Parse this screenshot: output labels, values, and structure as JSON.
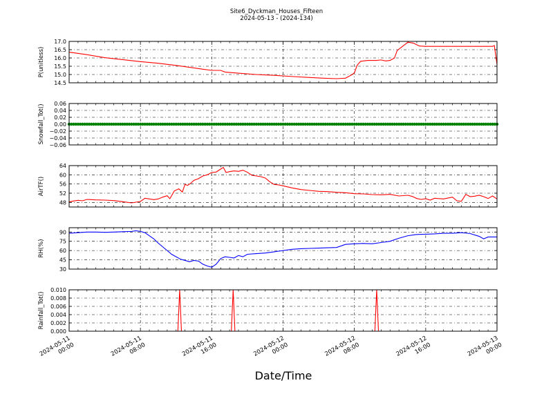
{
  "header": {
    "title": "Site6_Dyckman_Houses_Fifteen",
    "subtitle": "2024-05-13 - (2024-134)"
  },
  "xaxis_label": "Date/Time",
  "chart_data": [
    {
      "type": "line",
      "id": "p",
      "ylabel": "P(unitless)",
      "ylim": [
        14.5,
        17.0
      ],
      "yticks": [
        "14.5",
        "15.0",
        "15.5",
        "16.0",
        "16.5",
        "17.0"
      ],
      "xlim": [
        0,
        48
      ],
      "x_ticks": [
        "2024-05-11 00:00",
        "2024-05-11 08:00",
        "2024-05-11 16:00",
        "2024-05-12 00:00",
        "2024-05-12 08:00",
        "2024-05-12 16:00",
        "2024-05-13 00:00"
      ],
      "grid": true,
      "series": [
        {
          "color": "#ff0000",
          "points": [
            [
              0,
              16.35
            ],
            [
              2,
              16.2
            ],
            [
              4,
              16.02
            ],
            [
              6,
              15.9
            ],
            [
              8,
              15.78
            ],
            [
              10,
              15.68
            ],
            [
              12,
              15.55
            ],
            [
              14,
              15.4
            ],
            [
              15,
              15.32
            ],
            [
              16,
              15.25
            ],
            [
              17,
              15.25
            ],
            [
              17.5,
              15.15
            ],
            [
              19,
              15.08
            ],
            [
              21,
              15.0
            ],
            [
              23,
              14.95
            ],
            [
              25,
              14.88
            ],
            [
              27,
              14.82
            ],
            [
              28.5,
              14.78
            ],
            [
              30,
              14.75
            ],
            [
              31,
              14.78
            ],
            [
              31.6,
              14.95
            ],
            [
              32,
              15.1
            ],
            [
              32.3,
              15.55
            ],
            [
              32.7,
              15.8
            ],
            [
              33.5,
              15.85
            ],
            [
              34.5,
              15.85
            ],
            [
              35,
              15.88
            ],
            [
              35.5,
              15.82
            ],
            [
              36,
              15.85
            ],
            [
              36.5,
              16.0
            ],
            [
              36.8,
              16.45
            ],
            [
              37.4,
              16.7
            ],
            [
              38,
              16.95
            ],
            [
              38.6,
              16.9
            ],
            [
              39.3,
              16.72
            ],
            [
              40,
              16.7
            ],
            [
              42,
              16.7
            ],
            [
              44,
              16.7
            ],
            [
              46,
              16.7
            ],
            [
              47.5,
              16.7
            ],
            [
              47.7,
              16.75
            ],
            [
              48,
              15.6
            ]
          ]
        }
      ]
    },
    {
      "type": "scatter",
      "id": "snow",
      "ylabel": "Snowfall_Tot()",
      "ylim": [
        -0.06,
        0.06
      ],
      "yticks": [
        "−0.06",
        "−0.04",
        "−0.02",
        "0.00",
        "0.02",
        "0.04",
        "0.06"
      ],
      "xlim": [
        0,
        48
      ],
      "grid": true,
      "series": [
        {
          "color": "#008000",
          "constant_value": 0.0,
          "x_range": [
            0,
            48
          ],
          "interval": 0.25
        }
      ]
    },
    {
      "type": "line",
      "id": "airt",
      "ylabel": "AirTF()",
      "ylim": [
        46,
        64
      ],
      "yticks": [
        "48",
        "52",
        "56",
        "60",
        "64"
      ],
      "xlim": [
        0,
        48
      ],
      "grid": true,
      "series": [
        {
          "color": "#ff0000",
          "points": [
            [
              0,
              48.2
            ],
            [
              0.5,
              48.6
            ],
            [
              1,
              48.9
            ],
            [
              1.5,
              48.7
            ],
            [
              2,
              49.3
            ],
            [
              3,
              49.1
            ],
            [
              4,
              49
            ],
            [
              5,
              48.8
            ],
            [
              6,
              48.3
            ],
            [
              7,
              47.8
            ],
            [
              8,
              48.4
            ],
            [
              8.5,
              49.8
            ],
            [
              9,
              49.5
            ],
            [
              9.5,
              49.2
            ],
            [
              10,
              49.5
            ],
            [
              10.5,
              50.3
            ],
            [
              11,
              50.9
            ],
            [
              11.3,
              49.6
            ],
            [
              11.8,
              53
            ],
            [
              12.3,
              53.9
            ],
            [
              12.7,
              52.5
            ],
            [
              13,
              55.8
            ],
            [
              13.3,
              55.4
            ],
            [
              13.6,
              56.2
            ],
            [
              14,
              57.6
            ],
            [
              14.5,
              58.3
            ],
            [
              15,
              59.5
            ],
            [
              15.5,
              60
            ],
            [
              16,
              61
            ],
            [
              16.5,
              61.2
            ],
            [
              17,
              62.5
            ],
            [
              17.3,
              63.2
            ],
            [
              17.6,
              61
            ],
            [
              18,
              61.4
            ],
            [
              18.5,
              61.7
            ],
            [
              19,
              61.5
            ],
            [
              19.5,
              62
            ],
            [
              20,
              61.1
            ],
            [
              20.5,
              59.8
            ],
            [
              21,
              59.5
            ],
            [
              21.5,
              59.2
            ],
            [
              22,
              58.6
            ],
            [
              22.5,
              57
            ],
            [
              23,
              55.8
            ],
            [
              23.5,
              55.6
            ],
            [
              24,
              55.2
            ],
            [
              25,
              54.3
            ],
            [
              26,
              53.6
            ],
            [
              27,
              53.2
            ],
            [
              28,
              52.8
            ],
            [
              29,
              52.7
            ],
            [
              30,
              52.4
            ],
            [
              31,
              52.2
            ],
            [
              32,
              51.8
            ],
            [
              33,
              51.7
            ],
            [
              34,
              51.4
            ],
            [
              35,
              51.3
            ],
            [
              36,
              51.5
            ],
            [
              37,
              50.8
            ],
            [
              38,
              51.1
            ],
            [
              38.5,
              50.6
            ],
            [
              39,
              49.7
            ],
            [
              39.5,
              49.3
            ],
            [
              40,
              49.6
            ],
            [
              40.5,
              49
            ],
            [
              41,
              49.8
            ],
            [
              42,
              49.5
            ],
            [
              43,
              50.3
            ],
            [
              43.5,
              48.7
            ],
            [
              44,
              48.5
            ],
            [
              44.5,
              51.5
            ],
            [
              45,
              50.5
            ],
            [
              45.5,
              50.7
            ],
            [
              46,
              51.1
            ],
            [
              46.5,
              50.5
            ],
            [
              47,
              49.7
            ],
            [
              47.5,
              50.8
            ],
            [
              48,
              49.5
            ]
          ]
        }
      ]
    },
    {
      "type": "line",
      "id": "rh",
      "ylabel": "RH(%)",
      "ylim": [
        30,
        97
      ],
      "yticks": [
        "30",
        "45",
        "60",
        "75",
        "90"
      ],
      "xlim": [
        0,
        48
      ],
      "grid": true,
      "series": [
        {
          "color": "#0000ff",
          "points": [
            [
              0,
              88
            ],
            [
              1,
              89
            ],
            [
              2,
              90
            ],
            [
              3,
              90
            ],
            [
              4,
              89.5
            ],
            [
              5,
              90
            ],
            [
              6,
              90.5
            ],
            [
              7,
              91
            ],
            [
              7.5,
              92
            ],
            [
              8,
              91
            ],
            [
              8.5,
              89
            ],
            [
              9,
              84
            ],
            [
              9.5,
              79
            ],
            [
              10,
              72
            ],
            [
              10.5,
              66
            ],
            [
              11,
              60
            ],
            [
              11.5,
              54
            ],
            [
              12,
              50
            ],
            [
              12.5,
              46
            ],
            [
              13,
              44
            ],
            [
              13.5,
              42
            ],
            [
              14,
              44
            ],
            [
              14.5,
              43
            ],
            [
              15,
              38
            ],
            [
              15.5,
              35
            ],
            [
              16,
              33
            ],
            [
              16.5,
              38
            ],
            [
              17,
              47
            ],
            [
              17.5,
              50
            ],
            [
              18,
              49
            ],
            [
              18.5,
              48
            ],
            [
              19,
              52
            ],
            [
              19.5,
              50
            ],
            [
              20,
              54
            ],
            [
              21,
              55
            ],
            [
              22,
              56
            ],
            [
              23,
              58
            ],
            [
              24,
              60
            ],
            [
              25,
              62
            ],
            [
              26,
              63
            ],
            [
              27,
              63.5
            ],
            [
              28,
              64
            ],
            [
              29,
              64.5
            ],
            [
              30,
              65
            ],
            [
              31,
              70
            ],
            [
              32,
              71
            ],
            [
              33,
              71.5
            ],
            [
              34,
              71
            ],
            [
              35,
              73
            ],
            [
              36,
              75
            ],
            [
              37,
              80
            ],
            [
              38,
              84
            ],
            [
              39,
              86
            ],
            [
              40,
              86.5
            ],
            [
              41,
              87
            ],
            [
              42,
              88
            ],
            [
              43,
              88
            ],
            [
              44,
              89
            ],
            [
              45,
              87.5
            ],
            [
              46,
              83
            ],
            [
              46.5,
              79
            ],
            [
              47,
              82
            ],
            [
              48,
              82
            ]
          ]
        }
      ]
    },
    {
      "type": "line",
      "id": "rain",
      "ylabel": "Rainfall_Tot()",
      "ylim": [
        0,
        0.01
      ],
      "yticks": [
        "0.000",
        "0.002",
        "0.004",
        "0.006",
        "0.008",
        "0.010"
      ],
      "xlim": [
        0,
        48
      ],
      "grid": true,
      "series": [
        {
          "color": "#ff0000",
          "points": [
            [
              0,
              0
            ],
            [
              12.2,
              0
            ],
            [
              12.4,
              0.01
            ],
            [
              12.6,
              0
            ],
            [
              18.2,
              0
            ],
            [
              18.4,
              0.01
            ],
            [
              18.6,
              0
            ],
            [
              34.3,
              0
            ],
            [
              34.5,
              0.01
            ],
            [
              34.7,
              0
            ],
            [
              48,
              0
            ]
          ]
        }
      ]
    }
  ]
}
